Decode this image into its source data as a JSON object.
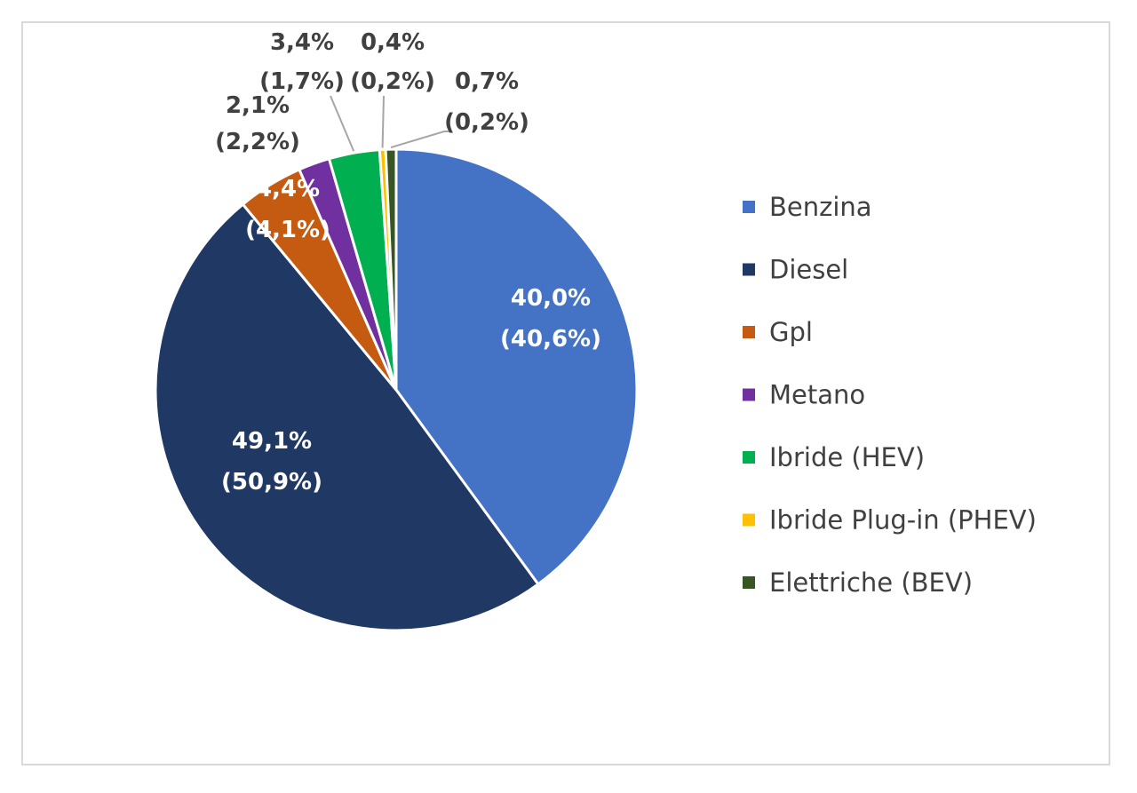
{
  "chart_data": {
    "type": "pie",
    "legend_position": "right",
    "slices": [
      {
        "name": "Benzina",
        "value": 40.0,
        "label": "40,0%",
        "label2": "(40,6%)",
        "color": "#4472C4",
        "label_color": "#ffffff"
      },
      {
        "name": "Diesel",
        "value": 49.1,
        "label": "49,1%",
        "label2": "(50,9%)",
        "color": "#203864",
        "label_color": "#ffffff"
      },
      {
        "name": "Gpl",
        "value": 4.4,
        "label": "4,4%",
        "label2": "(4,1%)",
        "color": "#C55A11",
        "label_color": "#ffffff"
      },
      {
        "name": "Metano",
        "value": 2.1,
        "label": "2,1%",
        "label2": "(2,2%)",
        "color": "#7030A0",
        "label_color": "#404040"
      },
      {
        "name": "Ibride (HEV)",
        "value": 3.4,
        "label": "3,4%",
        "label2": "(1,7%)",
        "color": "#00B050",
        "label_color": "#404040"
      },
      {
        "name": "Ibride Plug-in  (PHEV)",
        "value": 0.4,
        "label": "0,4%",
        "label2": "(0,2%)",
        "color": "#FFC000",
        "label_color": "#404040"
      },
      {
        "name": "Elettriche (BEV)",
        "value": 0.7,
        "label": "0,7%",
        "label2": "(0,2%)",
        "color": "#375623",
        "label_color": "#404040"
      }
    ]
  }
}
